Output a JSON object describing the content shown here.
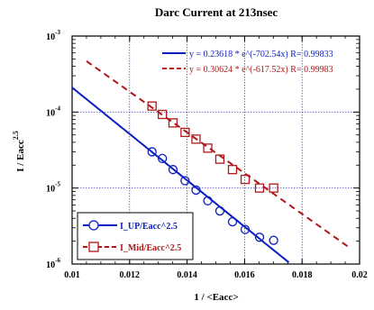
{
  "chart_data": {
    "type": "scatter",
    "title": "Darc Current at 213nsec",
    "xlabel": "1 / <Eacc>",
    "ylabel": "I / Eacc",
    "ylabel_sup": "2.5",
    "xlim": [
      0.01,
      0.02
    ],
    "ylim": [
      1e-06,
      0.001
    ],
    "yscale": "log",
    "grid": true,
    "legend_position": "bottom-left",
    "x_ticks": [
      {
        "v": 0.01,
        "label": "0.01"
      },
      {
        "v": 0.012,
        "label": "0.012"
      },
      {
        "v": 0.014,
        "label": "0.014"
      },
      {
        "v": 0.016,
        "label": "0.016"
      },
      {
        "v": 0.018,
        "label": "0.018"
      },
      {
        "v": 0.02,
        "label": "0.02"
      }
    ],
    "y_ticks": [
      {
        "v": 1e-06,
        "base": "10",
        "exp": "-6"
      },
      {
        "v": 1e-05,
        "base": "10",
        "exp": "-5"
      },
      {
        "v": 0.0001,
        "base": "10",
        "exp": "-4"
      },
      {
        "v": 0.001,
        "base": "10",
        "exp": "-3"
      }
    ],
    "series": [
      {
        "name": "I_UP/Eacc^2.5",
        "color": "#0a1fbf",
        "marker": "circle",
        "line": "solid",
        "x": [
          0.01278,
          0.01314,
          0.01351,
          0.01393,
          0.01431,
          0.01472,
          0.01514,
          0.01558,
          0.01602,
          0.01652,
          0.01701
        ],
        "y": [
          3e-05,
          2.45e-05,
          1.75e-05,
          1.25e-05,
          9.4e-06,
          6.8e-06,
          5e-06,
          3.6e-06,
          2.85e-06,
          2.25e-06,
          2.05e-06
        ],
        "fit": {
          "a": 0.23618,
          "b": -702.54,
          "x_range": [
            0.01,
            0.0178
          ]
        },
        "fit_label": "y = 0.23618 * e^(-702.54x)   R= 0.99833"
      },
      {
        "name": "I_Mid/Eacc^2.5",
        "color": "#b01818",
        "marker": "square",
        "line": "dashed",
        "x": [
          0.01278,
          0.01314,
          0.01351,
          0.01393,
          0.01431,
          0.01472,
          0.01514,
          0.01558,
          0.01602,
          0.01652,
          0.01701
        ],
        "y": [
          0.00012,
          9.3e-05,
          7.2e-05,
          5.4e-05,
          4.4e-05,
          3.35e-05,
          2.4e-05,
          1.75e-05,
          1.3e-05,
          1e-05,
          1e-05
        ],
        "fit": {
          "a": 0.30624,
          "b": -617.52,
          "x_range": [
            0.0105,
            0.0197
          ]
        },
        "fit_label": "y = 0.30624 * e^(-617.52x)   R= 0.99983"
      }
    ]
  }
}
